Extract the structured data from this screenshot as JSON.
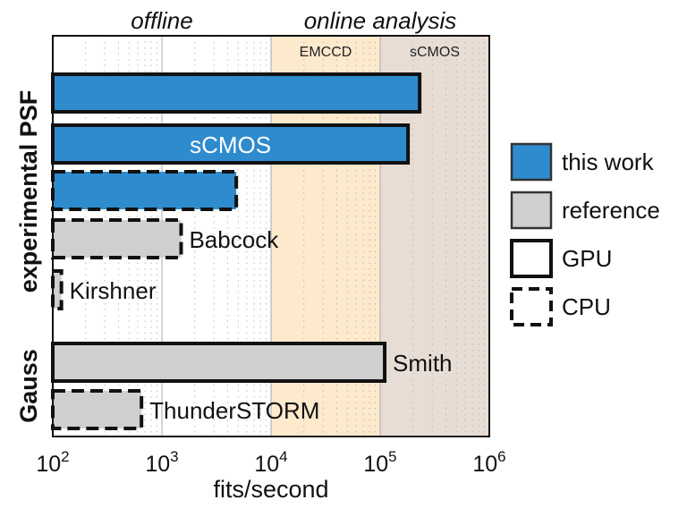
{
  "chart_data": {
    "type": "bar",
    "orientation": "horizontal",
    "x_scale": "log",
    "xlim": [
      100,
      1000000
    ],
    "xlabel": "fits/second",
    "x_ticks": [
      {
        "value": 100,
        "base": "10",
        "exp": "2"
      },
      {
        "value": 1000,
        "base": "10",
        "exp": "3"
      },
      {
        "value": 10000,
        "base": "10",
        "exp": "4"
      },
      {
        "value": 100000,
        "base": "10",
        "exp": "5"
      },
      {
        "value": 1000000,
        "base": "10",
        "exp": "6"
      }
    ],
    "grid": true,
    "regions": [
      {
        "label": "EMCCD",
        "x_start": 10000,
        "x_end": 100000,
        "color": "#fde9cc"
      },
      {
        "label": "sCMOS",
        "x_start": 100000,
        "x_end": 1000000,
        "color": "#e7ddd5"
      }
    ],
    "section_labels": [
      {
        "label": "offline",
        "x_start": 100,
        "x_end": 10000
      },
      {
        "label": "online analysis",
        "x_start": 10000,
        "x_end": 1000000
      }
    ],
    "row_groups": [
      {
        "label": "experimental PSF",
        "rows": [
          0,
          1,
          2,
          3,
          4
        ]
      },
      {
        "label": "Gauss",
        "rows": [
          5,
          6
        ]
      }
    ],
    "bars": [
      {
        "label": "",
        "value": 230000,
        "source": "this work",
        "hardware": "GPU"
      },
      {
        "label": "sCMOS",
        "value": 180000,
        "source": "this work",
        "hardware": "GPU",
        "label_position": "inside"
      },
      {
        "label": "",
        "value": 4800,
        "source": "this work",
        "hardware": "CPU"
      },
      {
        "label": "Babcock",
        "value": 1500,
        "source": "reference",
        "hardware": "CPU"
      },
      {
        "label": "Kirshner",
        "value": 120,
        "source": "reference",
        "hardware": "CPU"
      },
      {
        "label": "Smith",
        "value": 110000,
        "source": "reference",
        "hardware": "GPU"
      },
      {
        "label": "ThunderSTORM",
        "value": 650,
        "source": "reference",
        "hardware": "CPU"
      }
    ],
    "legend": {
      "placement": "right",
      "entries": [
        {
          "label": "this work",
          "kind": "fill",
          "color": "#2e8bcd"
        },
        {
          "label": "reference",
          "kind": "fill",
          "color": "#cfcfcf"
        },
        {
          "label": "GPU",
          "kind": "solid-outline"
        },
        {
          "label": "CPU",
          "kind": "dashed-outline"
        }
      ]
    },
    "colors": {
      "this_work": "#2e8bcd",
      "reference": "#cfcfcf",
      "outline": "#111111",
      "grid_minor": "#b9b9b9",
      "grid_major": "#a8a8a8"
    }
  }
}
